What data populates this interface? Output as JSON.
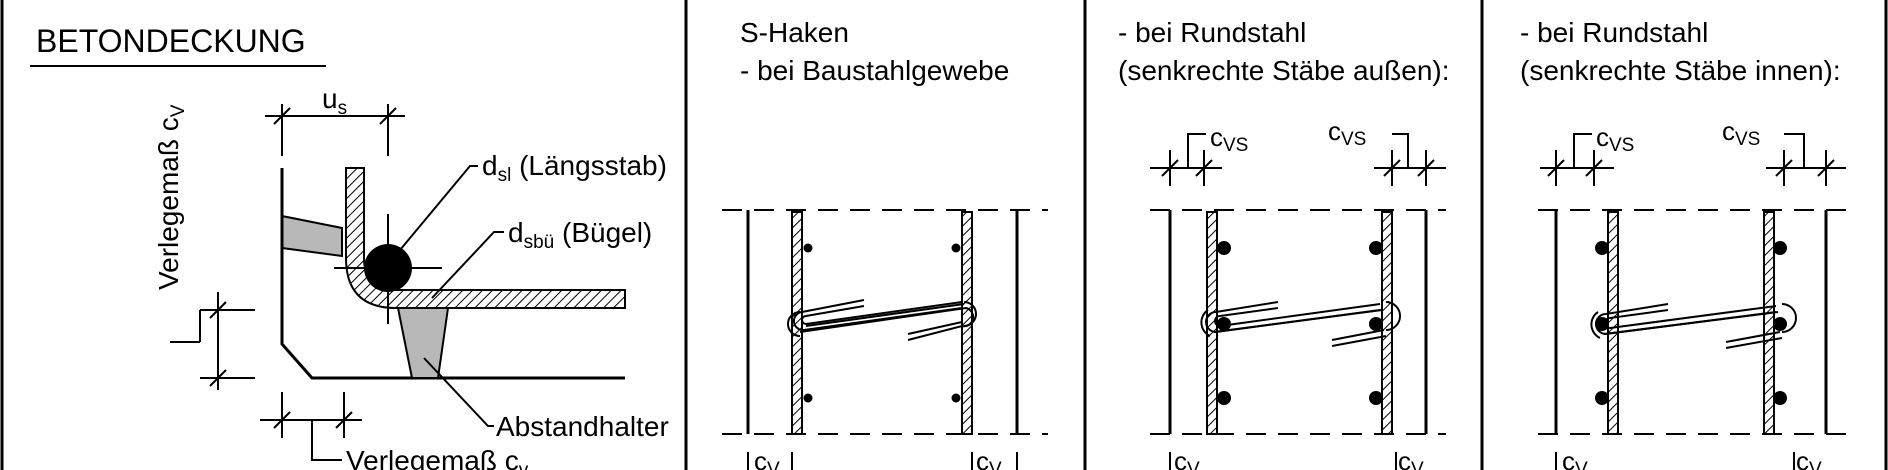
{
  "colors": {
    "ink": "#000000",
    "fill_gray": "#b8b8b8",
    "background": "#ffffff"
  },
  "left": {
    "title": "BETONDECKUNG",
    "verlegemass_cv": {
      "text": "Verlegemaß c",
      "sub": "V"
    },
    "us": {
      "text": "u",
      "sub": "s"
    },
    "d_sl": {
      "text": "d",
      "sub": "sl",
      "suffix": " (Längsstab)"
    },
    "d_sbu": {
      "text": "d",
      "sub": "sbü",
      "suffix": " (Bügel)"
    },
    "abstandhalter": "Abstandhalter",
    "verlegemass_bottom": {
      "text": "Verlegemaß c",
      "sub": "v"
    }
  },
  "panel1": {
    "line1": "S-Haken",
    "line2": "- bei Baustahlgewebe",
    "cv_left": {
      "text": "c",
      "sub": "V"
    },
    "cv_right": {
      "text": "c",
      "sub": "V"
    }
  },
  "panel2": {
    "line1": "- bei Rundstahl",
    "line2": "(senkrechte Stäbe außen):",
    "cvs_left": {
      "text": "c",
      "sub": "VS"
    },
    "cvs_right": {
      "text": "c",
      "sub": "VS"
    },
    "cv_left": {
      "text": "c",
      "sub": "V"
    },
    "cv_right": {
      "text": "c",
      "sub": "V"
    }
  },
  "panel3": {
    "line1": "- bei Rundstahl",
    "line2": "(senkrechte Stäbe innen):",
    "cvs_left": {
      "text": "c",
      "sub": "VS"
    },
    "cvs_right": {
      "text": "c",
      "sub": "VS"
    },
    "cv_left": {
      "text": "c",
      "sub": "V"
    },
    "cv_right": {
      "text": "c",
      "sub": "V"
    }
  }
}
